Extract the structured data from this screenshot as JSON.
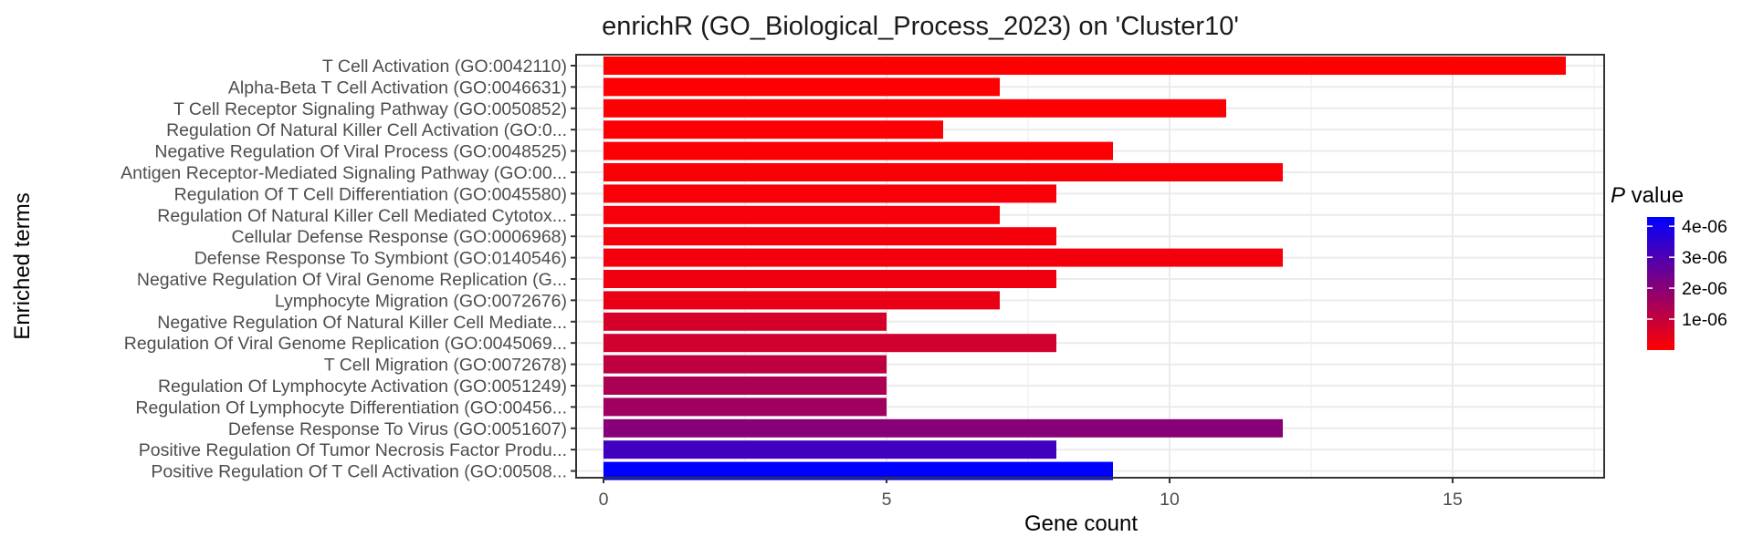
{
  "chart_data": {
    "type": "bar",
    "orientation": "horizontal",
    "title": "enrichR (GO_Biological_Process_2023) on 'Cluster10'",
    "xlabel": "Gene count",
    "ylabel": "Enriched terms",
    "xlim": [
      0,
      17.8
    ],
    "xticks": [
      0,
      5,
      10,
      15
    ],
    "grid": true,
    "legend": {
      "position": "right",
      "title_italic": "P",
      "title_rest": " value",
      "labels": [
        "4e-06",
        "3e-06",
        "2e-06",
        "1e-06"
      ],
      "label_values": [
        4e-06,
        3e-06,
        2e-06,
        1e-06
      ],
      "color_min": "#ff0000",
      "color_max": "#0000ff",
      "range": [
        0,
        4.3e-06
      ]
    },
    "categories": [
      "T Cell Activation (GO:0042110)",
      "Alpha-Beta T Cell Activation (GO:0046631)",
      "T Cell Receptor Signaling Pathway (GO:0050852)",
      "Regulation Of Natural Killer Cell Activation (GO:0...",
      "Negative Regulation Of Viral Process (GO:0048525)",
      "Antigen Receptor-Mediated Signaling Pathway (GO:00...",
      "Regulation Of T Cell Differentiation (GO:0045580)",
      "Regulation Of Natural Killer Cell Mediated Cytotox...",
      "Cellular Defense Response (GO:0006968)",
      "Defense Response To Symbiont (GO:0140546)",
      "Negative Regulation Of Viral Genome Replication (G...",
      "Lymphocyte Migration (GO:0072676)",
      "Negative Regulation Of Natural Killer Cell Mediate...",
      "Regulation Of Viral Genome Replication (GO:0045069...",
      "T Cell Migration (GO:0072678)",
      "Regulation Of Lymphocyte Activation (GO:0051249)",
      "Regulation Of Lymphocyte Differentiation (GO:00456...",
      "Defense Response To Virus (GO:0051607)",
      "Positive Regulation Of Tumor Necrosis Factor Produ...",
      "Positive Regulation Of T Cell Activation (GO:00508..."
    ],
    "values": [
      17,
      7,
      11,
      6,
      9,
      12,
      8,
      7,
      8,
      12,
      8,
      7,
      5,
      8,
      5,
      5,
      5,
      12,
      8,
      9
    ],
    "p_values": [
      2e-08,
      4e-08,
      5e-08,
      6e-08,
      8e-08,
      1e-07,
      1.2e-07,
      1.5e-07,
      1.8e-07,
      2e-07,
      2.5e-07,
      3.5e-07,
      7e-07,
      8e-07,
      1.1e-06,
      1.4e-06,
      1.6e-06,
      2e-06,
      3.2e-06,
      4.3e-06
    ]
  }
}
